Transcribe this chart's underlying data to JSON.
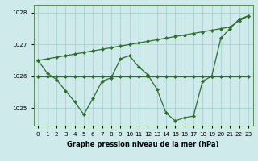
{
  "xlabel": "Graphe pression niveau de la mer (hPa)",
  "x": [
    0,
    1,
    2,
    3,
    4,
    5,
    6,
    7,
    8,
    9,
    10,
    11,
    12,
    13,
    14,
    15,
    16,
    17,
    18,
    19,
    20,
    21,
    22,
    23
  ],
  "line_diagonal": [
    1026.5,
    1026.55,
    1026.6,
    1026.65,
    1026.7,
    1026.75,
    1026.8,
    1026.85,
    1026.9,
    1026.95,
    1027.0,
    1027.05,
    1027.1,
    1027.15,
    1027.2,
    1027.25,
    1027.3,
    1027.35,
    1027.4,
    1027.45,
    1027.5,
    1027.55,
    1027.75,
    1027.9
  ],
  "line_flat": [
    1026.0,
    1026.0,
    1026.0,
    1026.0,
    1026.0,
    1026.0,
    1026.0,
    1026.0,
    1026.0,
    1026.0,
    1026.0,
    1026.0,
    1026.0,
    1026.0,
    1026.0,
    1026.0,
    1026.0,
    1026.0,
    1026.0,
    1026.0,
    1026.0,
    1026.0,
    1026.0,
    1026.0
  ],
  "line_jagged": [
    1026.5,
    1026.1,
    1025.9,
    1025.55,
    1025.2,
    1024.8,
    1025.3,
    1025.85,
    1025.95,
    1026.55,
    1026.65,
    1026.3,
    1026.05,
    1025.6,
    1024.85,
    1024.6,
    1024.7,
    1024.75,
    1025.85,
    1026.0,
    1027.2,
    1027.5,
    1027.8,
    1027.9
  ],
  "bg_color": "#ceeaea",
  "line_color": "#2d6e2d",
  "grid_color": "#9ecece",
  "ylim": [
    1024.45,
    1028.25
  ],
  "yticks": [
    1025,
    1026,
    1027,
    1028
  ],
  "xticks": [
    0,
    1,
    2,
    3,
    4,
    5,
    6,
    7,
    8,
    9,
    10,
    11,
    12,
    13,
    14,
    15,
    16,
    17,
    18,
    19,
    20,
    21,
    22,
    23
  ],
  "xlabel_fontsize": 6.0,
  "tick_fontsize": 5.2
}
